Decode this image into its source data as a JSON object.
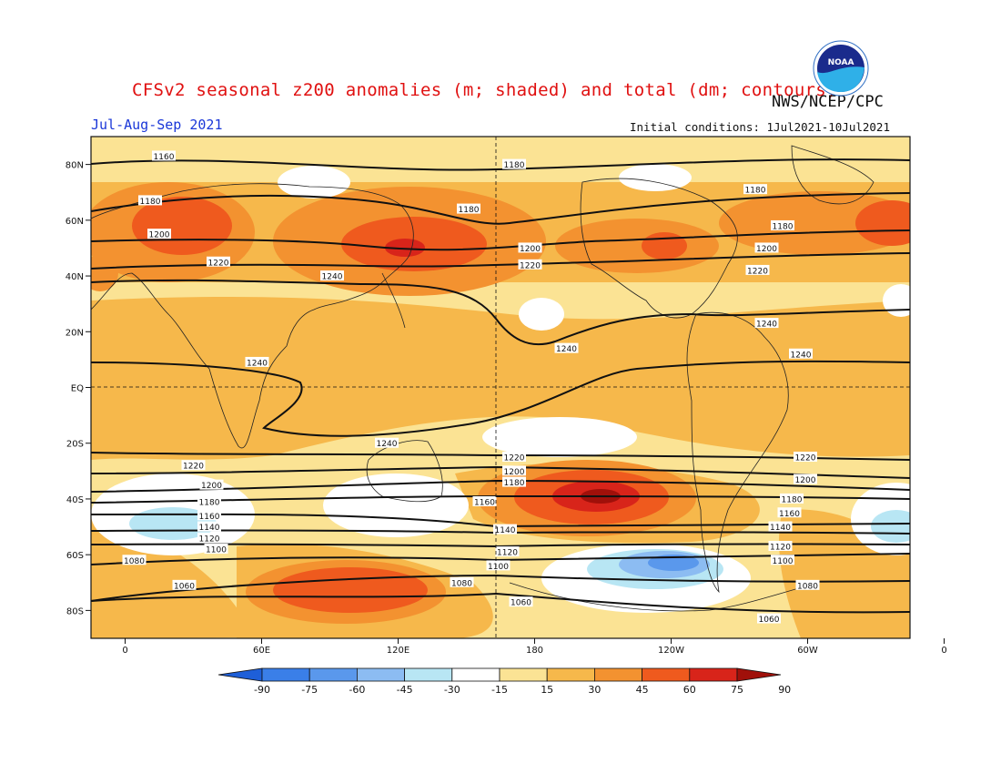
{
  "title": "CFSv2 seasonal z200 anomalies (m; shaded) and total (dm; contours)",
  "period": "Jul-Aug-Sep 2021",
  "organization": "NWS/NCEP/CPC",
  "initial_conditions": "Initial conditions: 1Jul2021-10Jul2021",
  "logo_text": "NOAA",
  "chart_data": {
    "type": "heatmap",
    "projection": "cylindrical-equidistant",
    "lon_range": [
      -15,
      345
    ],
    "lat_range": [
      -90,
      90
    ],
    "lat_ticks": [
      "80N",
      "60N",
      "40N",
      "20N",
      "EQ",
      "20S",
      "40S",
      "60S",
      "80S"
    ],
    "lon_ticks": [
      "0",
      "60E",
      "120E",
      "180",
      "120W",
      "60W",
      "0"
    ],
    "colorbar": {
      "tick_labels": [
        "-90",
        "-75",
        "-60",
        "-45",
        "-30",
        "-15",
        "15",
        "30",
        "45",
        "60",
        "75",
        "90"
      ],
      "colors": [
        "#1e5fd8",
        "#3a7fe8",
        "#5a98ec",
        "#8cbcf2",
        "#b8e6f4",
        "#ffffff",
        "#fbe394",
        "#f6b84b",
        "#f39230",
        "#ef5a1e",
        "#d8241a",
        "#a0100a"
      ]
    },
    "contour_labels": [
      {
        "text": "1160",
        "lon": 17,
        "lat": 83
      },
      {
        "text": "1180",
        "lon": 171,
        "lat": 80
      },
      {
        "text": "1180",
        "lon": 277,
        "lat": 71
      },
      {
        "text": "1180",
        "lon": 11,
        "lat": 67
      },
      {
        "text": "1180",
        "lon": 151,
        "lat": 64
      },
      {
        "text": "1180",
        "lon": 289,
        "lat": 58
      },
      {
        "text": "1200",
        "lon": 15,
        "lat": 55
      },
      {
        "text": "1200",
        "lon": 178,
        "lat": 50
      },
      {
        "text": "1200",
        "lon": 282,
        "lat": 50
      },
      {
        "text": "1220",
        "lon": 41,
        "lat": 45
      },
      {
        "text": "1220",
        "lon": 178,
        "lat": 44
      },
      {
        "text": "1220",
        "lon": 278,
        "lat": 42
      },
      {
        "text": "1240",
        "lon": 91,
        "lat": 40
      },
      {
        "text": "1240",
        "lon": 282,
        "lat": 23
      },
      {
        "text": "1240",
        "lon": 194,
        "lat": 14
      },
      {
        "text": "1240",
        "lon": 297,
        "lat": 12
      },
      {
        "text": "1240",
        "lon": 58,
        "lat": 9
      },
      {
        "text": "1240",
        "lon": 115,
        "lat": -20
      },
      {
        "text": "1220",
        "lon": 171,
        "lat": -25
      },
      {
        "text": "1220",
        "lon": 30,
        "lat": -28
      },
      {
        "text": "1220",
        "lon": 299,
        "lat": -25
      },
      {
        "text": "1200",
        "lon": 171,
        "lat": -30
      },
      {
        "text": "1200",
        "lon": 299,
        "lat": -33
      },
      {
        "text": "1200",
        "lon": 38,
        "lat": -35
      },
      {
        "text": "1180",
        "lon": 171,
        "lat": -34
      },
      {
        "text": "1180",
        "lon": 293,
        "lat": -40
      },
      {
        "text": "1180",
        "lon": 37,
        "lat": -41
      },
      {
        "text": "1160",
        "lon": 158,
        "lat": -41
      },
      {
        "text": "1160",
        "lon": 292,
        "lat": -45
      },
      {
        "text": "1160",
        "lon": 37,
        "lat": -46
      },
      {
        "text": "1140",
        "lon": 37,
        "lat": -50
      },
      {
        "text": "1140",
        "lon": 167,
        "lat": -51
      },
      {
        "text": "1140",
        "lon": 288,
        "lat": -50
      },
      {
        "text": "1120",
        "lon": 37,
        "lat": -54
      },
      {
        "text": "1120",
        "lon": 168,
        "lat": -59
      },
      {
        "text": "1120",
        "lon": 288,
        "lat": -57
      },
      {
        "text": "1100",
        "lon": 40,
        "lat": -58
      },
      {
        "text": "1100",
        "lon": 164,
        "lat": -64
      },
      {
        "text": "1100",
        "lon": 289,
        "lat": -62
      },
      {
        "text": "1080",
        "lon": 4,
        "lat": -62
      },
      {
        "text": "1080",
        "lon": 148,
        "lat": -70
      },
      {
        "text": "1080",
        "lon": 300,
        "lat": -71
      },
      {
        "text": "1060",
        "lon": 26,
        "lat": -71
      },
      {
        "text": "1060",
        "lon": 174,
        "lat": -77
      },
      {
        "text": "1060",
        "lon": 283,
        "lat": -83
      }
    ]
  }
}
